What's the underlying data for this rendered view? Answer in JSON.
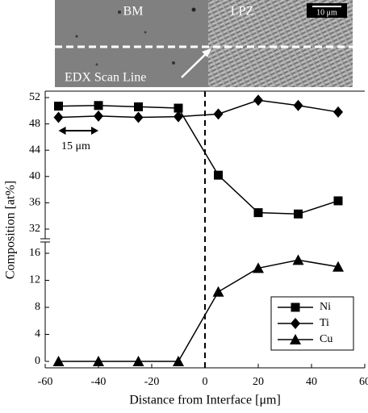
{
  "chart_data": {
    "type": "line",
    "image_labels": {
      "left": "BM",
      "right": "LPZ",
      "scale_bar": "10 μm",
      "scan_line": "EDX Scan Line"
    },
    "annotation": "15 μm",
    "x_label": "Distance from Interface [μm]",
    "y_label": "Composition [at%]",
    "x": [
      -55,
      -40,
      -25,
      -10,
      5,
      20,
      35,
      50
    ],
    "series": [
      {
        "name": "Ni",
        "color": "#000000",
        "marker": "square",
        "values": [
          50.7,
          50.8,
          50.6,
          50.4,
          40.2,
          34.5,
          34.3,
          36.3
        ]
      },
      {
        "name": "Ti",
        "color": "#000000",
        "marker": "diamond",
        "values": [
          49.0,
          49.2,
          49.0,
          49.1,
          49.5,
          51.6,
          50.8,
          49.8
        ]
      },
      {
        "name": "Cu",
        "color": "#000000",
        "marker": "triangle",
        "values": [
          0,
          0,
          0,
          0,
          10.3,
          13.8,
          15.0,
          14.0
        ]
      }
    ],
    "xlim": [
      -60,
      60
    ],
    "xticks": [
      -60,
      -40,
      -20,
      0,
      20,
      40,
      60
    ],
    "ylim": [
      0,
      52
    ],
    "axis_break": [
      16,
      32
    ],
    "yticks": [
      0,
      4,
      8,
      12,
      16,
      32,
      36,
      40,
      44,
      48,
      52
    ],
    "legend": "lower right"
  }
}
